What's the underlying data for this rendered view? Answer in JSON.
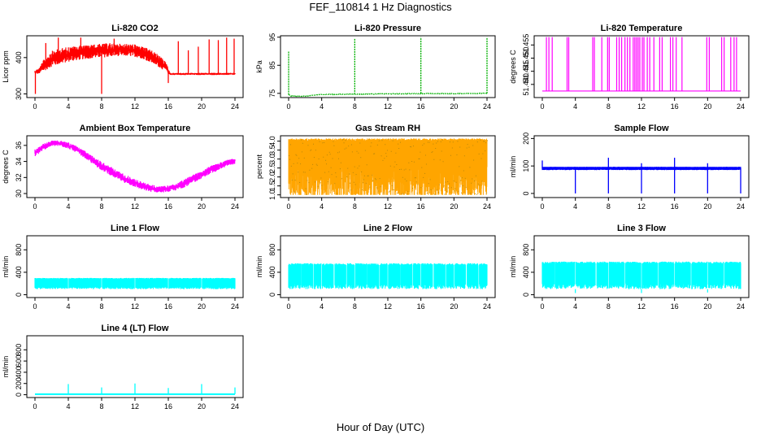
{
  "figure": {
    "title": "FEF_110814  1 Hz Diagnostics",
    "xlabel": "Hour of Day (UTC)"
  },
  "chart_data": [
    {
      "type": "line",
      "title": "Li-820 CO2",
      "ylabel": "Licor ppm",
      "color": "#ff0000",
      "xlim": [
        0,
        24
      ],
      "ylim": [
        290,
        460
      ],
      "xticks": [
        "0",
        "4",
        "8",
        "12",
        "16",
        "20",
        "24"
      ],
      "yticks": [
        300,
        400
      ],
      "band": {
        "x": [
          0,
          0.5,
          1,
          1.5,
          2,
          3,
          4,
          5,
          6,
          7,
          8,
          9,
          10,
          11,
          12,
          13,
          14,
          15,
          15.8,
          16.2,
          17,
          18,
          20,
          22,
          24
        ],
        "low": [
          355,
          355,
          362,
          368,
          375,
          382,
          388,
          392,
          396,
          398,
          400,
          402,
          404,
          404,
          402,
          396,
          385,
          372,
          360,
          352,
          352,
          352,
          352,
          352,
          352
        ],
        "high": [
          365,
          372,
          392,
          408,
          418,
          425,
          430,
          432,
          434,
          436,
          438,
          440,
          438,
          438,
          436,
          430,
          420,
          405,
          385,
          358,
          358,
          358,
          358,
          358,
          358
        ]
      },
      "spikes": [
        {
          "x": 0.05,
          "y": 300
        },
        {
          "x": 8.0,
          "y": 300
        },
        {
          "x": 16.0,
          "y": 330
        },
        {
          "x": 1.3,
          "y": 440
        },
        {
          "x": 2.8,
          "y": 455
        },
        {
          "x": 5.5,
          "y": 455
        },
        {
          "x": 9.5,
          "y": 452
        },
        {
          "x": 17.2,
          "y": 445
        },
        {
          "x": 18.4,
          "y": 420
        },
        {
          "x": 19.6,
          "y": 430
        },
        {
          "x": 20.9,
          "y": 450
        },
        {
          "x": 22.0,
          "y": 448
        },
        {
          "x": 23.0,
          "y": 455
        },
        {
          "x": 23.9,
          "y": 452
        }
      ]
    },
    {
      "type": "line",
      "title": "Li-820 Pressure",
      "ylabel": "kPa",
      "color": "#00b000",
      "xlim": [
        0,
        24
      ],
      "ylim": [
        73.5,
        95.5
      ],
      "xticks": [
        "0",
        "4",
        "8",
        "12",
        "16",
        "20",
        "24"
      ],
      "yticks": [
        75,
        85,
        95
      ],
      "series": {
        "x": [
          0,
          0.3,
          2,
          4,
          8,
          12,
          16,
          20,
          23.5,
          24
        ],
        "y": [
          74.5,
          74.0,
          74.0,
          74.6,
          74.7,
          74.8,
          74.9,
          74.9,
          75.0,
          75.0
        ]
      },
      "spikes": [
        {
          "x": 0.0,
          "y": 90
        },
        {
          "x": 8.0,
          "y": 94.5
        },
        {
          "x": 16.0,
          "y": 95
        },
        {
          "x": 24.0,
          "y": 95
        }
      ]
    },
    {
      "type": "line",
      "title": "Li-820 Temperature",
      "ylabel": "degrees C",
      "color": "#ff00ff",
      "xlim": [
        0,
        24
      ],
      "ylim": [
        51.435,
        51.4585
      ],
      "xticks": [
        "0",
        "4",
        "8",
        "12",
        "16",
        "20",
        "24"
      ],
      "yticks": [
        "51.440",
        "51.445",
        "51.450",
        "51.455"
      ],
      "ytick_values": [
        51.44,
        51.445,
        51.45,
        51.455
      ],
      "baseline": 51.4375,
      "peak": 51.458,
      "jumps": [
        0.5,
        0.8,
        1.2,
        3.0,
        3.2,
        6.1,
        6.3,
        7.2,
        7.9,
        8.1,
        9.0,
        9.3,
        9.6,
        10.0,
        10.3,
        10.6,
        11.0,
        11.2,
        11.4,
        11.6,
        11.8,
        12.1,
        12.3,
        12.7,
        13.0,
        13.5,
        14.2,
        14.5,
        15.5,
        15.8,
        16.2,
        16.9,
        19.9,
        20.2,
        21.7,
        22.0,
        22.8,
        23.2,
        23.5
      ]
    },
    {
      "type": "line",
      "title": "Ambient Box Temperature",
      "ylabel": "degrees C",
      "color": "#ff00ff",
      "xlim": [
        0,
        24
      ],
      "ylim": [
        29.5,
        37.2
      ],
      "xticks": [
        "0",
        "4",
        "8",
        "12",
        "16",
        "20",
        "24"
      ],
      "yticks": [
        30,
        32,
        34,
        36
      ],
      "band": {
        "x": [
          0,
          1,
          2,
          3,
          4,
          5,
          6,
          7,
          8,
          9,
          10,
          11,
          12,
          13,
          14,
          15,
          16,
          17,
          18,
          19,
          20,
          21,
          22,
          23,
          24
        ],
        "low": [
          34.6,
          35.4,
          35.9,
          35.9,
          35.6,
          35.1,
          34.4,
          33.6,
          32.9,
          32.3,
          31.7,
          31.2,
          30.8,
          30.4,
          30.2,
          30.1,
          30.2,
          30.4,
          30.8,
          31.3,
          31.9,
          32.4,
          32.9,
          33.4,
          33.7
        ],
        "high": [
          35.5,
          36.2,
          36.6,
          36.6,
          36.4,
          35.9,
          35.3,
          34.6,
          34.0,
          33.4,
          32.8,
          32.3,
          31.8,
          31.4,
          31.1,
          30.9,
          31.0,
          31.3,
          31.8,
          32.4,
          32.9,
          33.4,
          33.8,
          34.2,
          34.4
        ]
      }
    },
    {
      "type": "scatter",
      "title": "Gas Stream RH",
      "ylabel": "percent",
      "color": "#ffa500",
      "color2": "#b8860b",
      "xlim": [
        0,
        24
      ],
      "ylim": [
        0.85,
        4.3
      ],
      "xticks": [
        "0",
        "4",
        "8",
        "12",
        "16",
        "20",
        "24"
      ],
      "yticks": [
        "1.0",
        "1.5",
        "2.0",
        "2.5",
        "3.0",
        "3.5",
        "4.0"
      ],
      "ytick_values": [
        1.0,
        1.5,
        2.0,
        2.5,
        3.0,
        3.5,
        4.0
      ],
      "band_low": 1.0,
      "band_high": 4.15
    },
    {
      "type": "line",
      "title": "Sample Flow",
      "ylabel": "ml/min",
      "color": "#0000ff",
      "xlim": [
        0,
        24
      ],
      "ylim": [
        -15,
        210
      ],
      "xticks": [
        "0",
        "4",
        "8",
        "12",
        "16",
        "20",
        "24"
      ],
      "yticks": [
        0,
        100,
        200
      ],
      "band_low": 85,
      "band_high": 97,
      "spikes": [
        {
          "x": 0.0,
          "y": 120
        },
        {
          "x": 4.0,
          "y": 0
        },
        {
          "x": 8.0,
          "y": 0
        },
        {
          "x": 8.0,
          "y": 130
        },
        {
          "x": 12.0,
          "y": 0
        },
        {
          "x": 12.0,
          "y": 110
        },
        {
          "x": 16.0,
          "y": 0
        },
        {
          "x": 16.0,
          "y": 130
        },
        {
          "x": 20.0,
          "y": 0
        },
        {
          "x": 20.0,
          "y": 110
        },
        {
          "x": 24.0,
          "y": 0
        }
      ]
    },
    {
      "type": "line",
      "title": "Line 1 Flow",
      "ylabel": "ml/min",
      "color": "#00ffff",
      "xlim": [
        0,
        24
      ],
      "ylim": [
        -50,
        1050
      ],
      "xticks": [
        "0",
        "4",
        "8",
        "12",
        "16",
        "20",
        "24"
      ],
      "yticks": [
        0,
        400,
        800
      ],
      "band_low": 100,
      "band_high": 300,
      "gaps": [
        4,
        8,
        12,
        16,
        20
      ],
      "tails": []
    },
    {
      "type": "line",
      "title": "Line 2 Flow",
      "ylabel": "ml/min",
      "color": "#00ffff",
      "xlim": [
        0,
        24
      ],
      "ylim": [
        -50,
        1050
      ],
      "xticks": [
        "0",
        "4",
        "8",
        "12",
        "16",
        "20",
        "24"
      ],
      "yticks": [
        0,
        400,
        800
      ],
      "band_low": 100,
      "band_high": 560,
      "gaps": [
        1.5,
        3,
        4,
        5.5,
        7,
        8,
        9.5,
        11,
        12,
        13.5,
        15,
        16,
        17.5,
        19,
        20,
        21.5,
        23
      ],
      "tails": []
    },
    {
      "type": "line",
      "title": "Line 3 Flow",
      "ylabel": "ml/min",
      "color": "#00ffff",
      "xlim": [
        0,
        24
      ],
      "ylim": [
        -50,
        1050
      ],
      "xticks": [
        "0",
        "4",
        "8",
        "12",
        "16",
        "20",
        "24"
      ],
      "yticks": [
        0,
        400,
        800
      ],
      "band_low": 100,
      "band_high": 590,
      "gaps": [
        1.5,
        4,
        6.5,
        8,
        10,
        12,
        14,
        16,
        18,
        20,
        22
      ],
      "tails": [
        {
          "x": 4,
          "y": 30
        },
        {
          "x": 12,
          "y": 30
        },
        {
          "x": 20,
          "y": 40
        }
      ]
    },
    {
      "type": "line",
      "title": "Line 4 (LT) Flow",
      "ylabel": "ml/min",
      "color": "#00ffff",
      "xlim": [
        0,
        24
      ],
      "ylim": [
        -50,
        1050
      ],
      "xticks": [
        "0",
        "4",
        "8",
        "12",
        "16",
        "20",
        "24"
      ],
      "yticks": [
        0,
        200,
        400,
        600,
        800
      ],
      "baseline": 10,
      "spikes": [
        {
          "x": 4.0,
          "y": 190
        },
        {
          "x": 8.0,
          "y": 130
        },
        {
          "x": 12.0,
          "y": 200
        },
        {
          "x": 16.0,
          "y": 120
        },
        {
          "x": 20.0,
          "y": 190
        },
        {
          "x": 24.0,
          "y": 130
        }
      ]
    }
  ]
}
